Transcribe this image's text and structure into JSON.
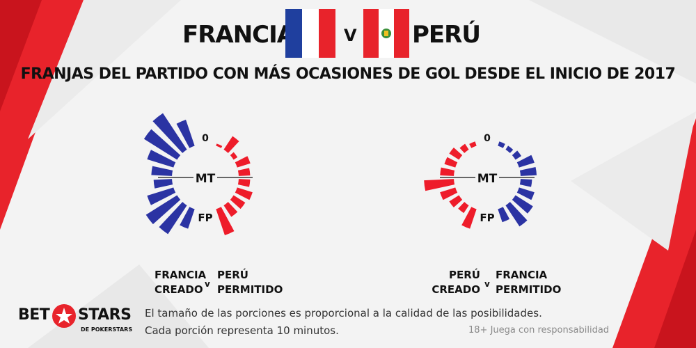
{
  "header": {
    "team_left": "FRANCIA",
    "vs": "V",
    "team_right": "PERÚ",
    "subtitle": "FRANJAS DEL PARTIDO CON MÁS OCASIONES DE GOL DESDE EL INICIO DE 2017"
  },
  "colors": {
    "blue": "#2b33a3",
    "red": "#ee1c2a",
    "france_blue": "#1f3f9e",
    "accent_red": "#e8232b"
  },
  "chart_data": [
    {
      "type": "radial_bar",
      "center_label": "MT",
      "start_label": "0",
      "end_label": "FP",
      "slices_per_half": 5,
      "slice_minutes": 10,
      "series": [
        {
          "name": "FRANCIA CREADO",
          "color": "#2b33a3",
          "side": "left",
          "values": [
            0.6,
            0.95,
            0.85,
            0.6,
            0.45,
            0.4,
            0.6,
            0.8,
            0.75,
            0.45
          ]
        },
        {
          "name": "PERÚ PERMITIDO",
          "color": "#ee1c2a",
          "side": "right",
          "values": [
            0.05,
            0.35,
            0.1,
            0.3,
            0.25,
            0.25,
            0.35,
            0.3,
            0.3,
            0.6
          ]
        }
      ],
      "caption": {
        "left_top": "FRANCIA",
        "left_bottom": "CREADO",
        "v": "v",
        "right_top": "PERÚ",
        "right_bottom": "PERMITIDO"
      }
    },
    {
      "type": "radial_bar",
      "center_label": "MT",
      "start_label": "0",
      "end_label": "FP",
      "slices_per_half": 5,
      "slice_minutes": 10,
      "series": [
        {
          "name": "PERÚ CREADO",
          "color": "#ee1c2a",
          "side": "left",
          "values": [
            0.1,
            0.15,
            0.25,
            0.25,
            0.3,
            0.65,
            0.35,
            0.25,
            0.2,
            0.45
          ]
        },
        {
          "name": "FRANCIA PERMITIDO",
          "color": "#2b33a3",
          "side": "right",
          "values": [
            0.1,
            0.1,
            0.15,
            0.35,
            0.35,
            0.25,
            0.35,
            0.45,
            0.55,
            0.3
          ]
        }
      ],
      "caption": {
        "left_top": "PERÚ",
        "left_bottom": "CREADO",
        "v": "v",
        "right_top": "FRANCIA",
        "right_bottom": "PERMITIDO"
      }
    }
  ],
  "footer": {
    "logo_bet": "BET",
    "logo_stars": "STARS",
    "logo_sub": "DE POKERSTARS",
    "note_line1": "El tamaño de las porciones es proporcional a la calidad de las posibilidades.",
    "note_line2": "Cada porción representa 10 minutos.",
    "disclaimer": "18+ Juega con responsabilidad"
  }
}
